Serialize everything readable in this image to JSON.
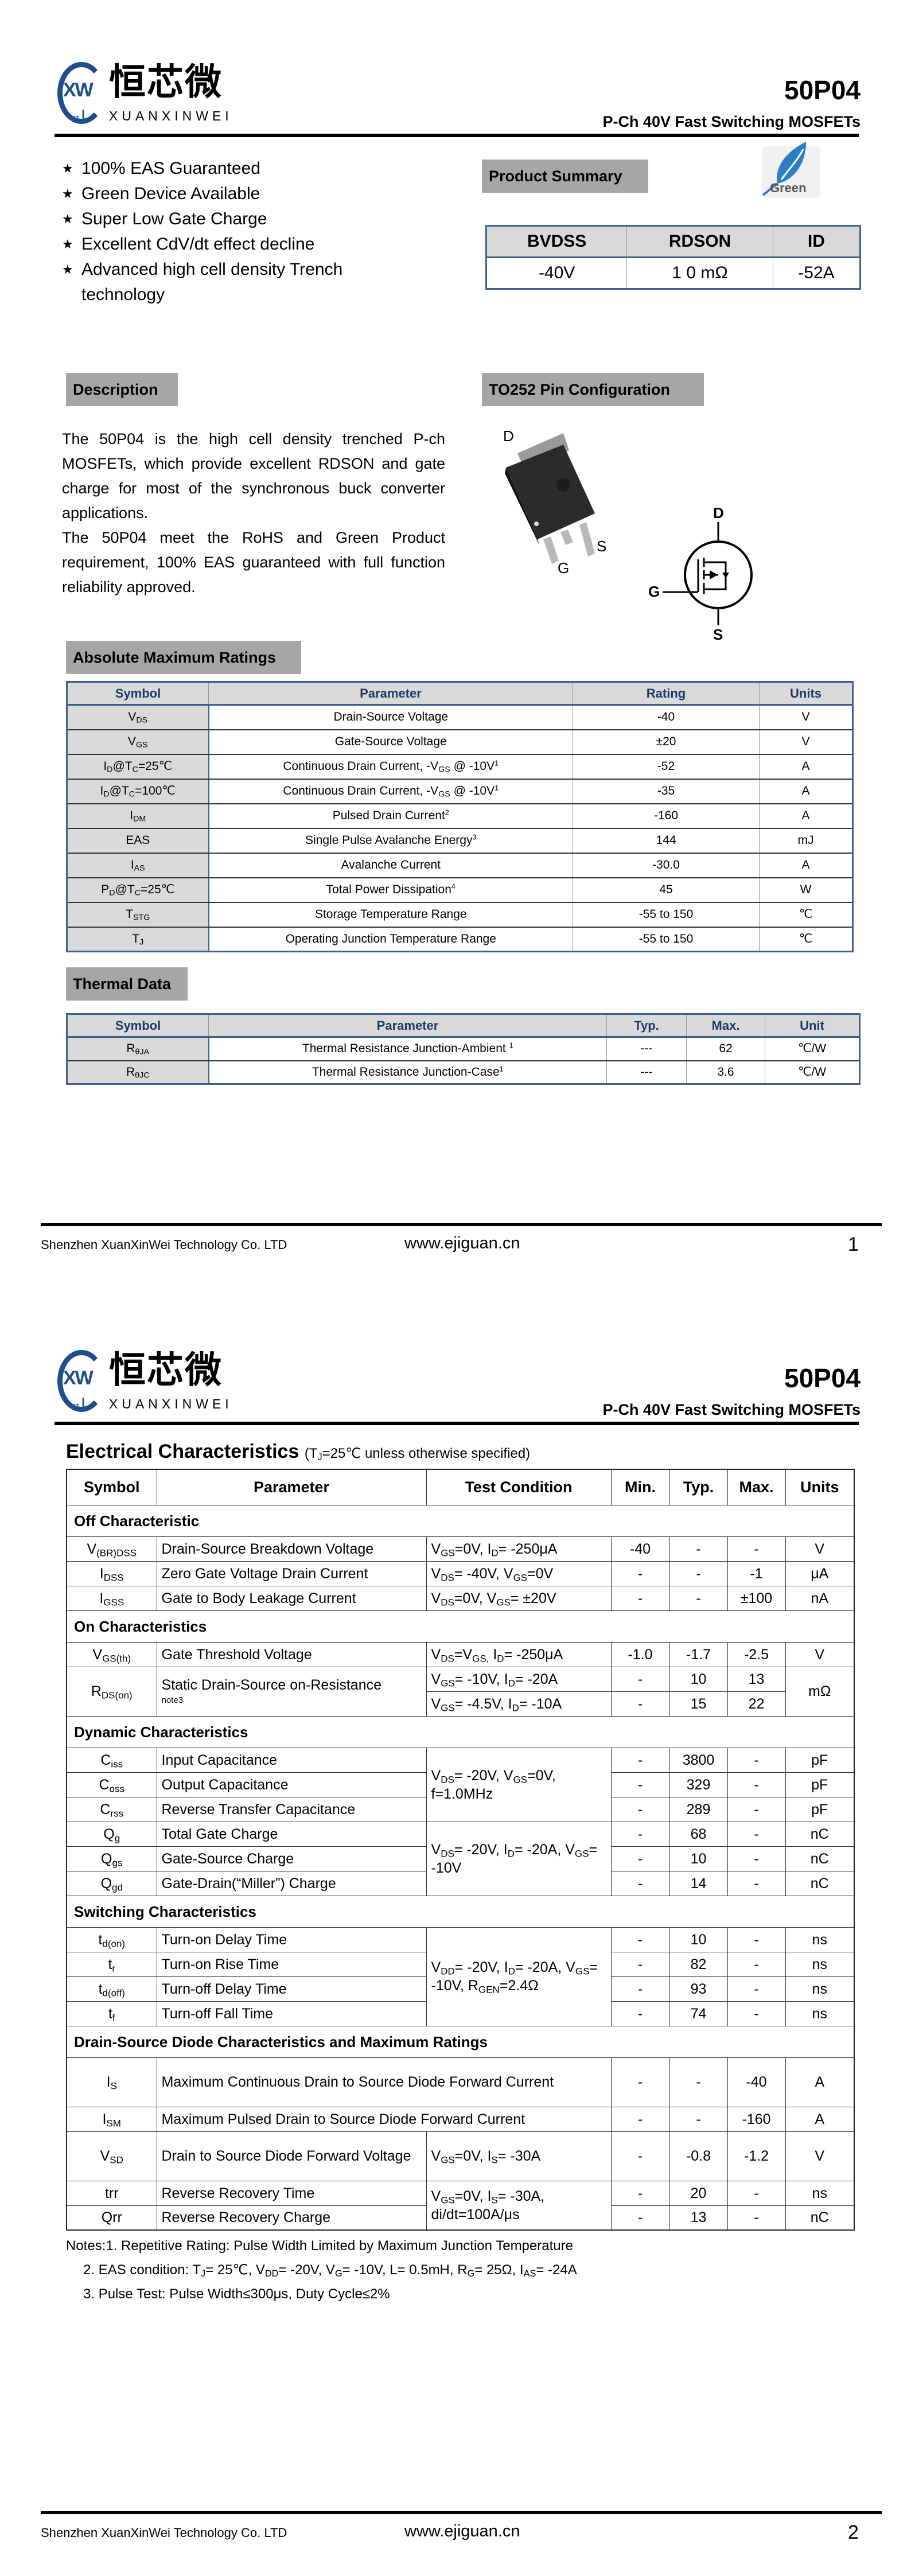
{
  "header": {
    "logo_letters": "XW",
    "logo_diode": "→|",
    "brand_cn": "恒芯微",
    "brand_en": "XUANXINWEI",
    "part": "50P04",
    "subtitle": "P-Ch 40V Fast Switching MOSFETs"
  },
  "features": {
    "bullet": "★",
    "items": [
      "100% EAS Guaranteed",
      "Green Device Available",
      "Super Low Gate Charge",
      "Excellent CdV/dt effect decline",
      "Advanced high cell density Trench"
    ],
    "continuation": "technology"
  },
  "product_summary": {
    "title": "Product Summary",
    "green_badge": "Green",
    "headers": [
      "BVDSS",
      "RDSON",
      "ID"
    ],
    "values": [
      "-40V",
      "1 0 mΩ",
      "-52A"
    ]
  },
  "description": {
    "title": "Description",
    "paragraphs": [
      "The 50P04 is the high cell density trenched P-ch MOSFETs, which provide excellent RDSON and gate charge for most of the synchronous buck converter applications.",
      "The 50P04 meet the RoHS and Green Product requirement, 100% EAS guaranteed with full function reliability approved."
    ]
  },
  "pin_config": {
    "title": "TO252 Pin Configuration",
    "package_labels": {
      "d": "D",
      "g": "G",
      "s": "S"
    },
    "schematic_labels": {
      "d": "D",
      "g": "G",
      "s": "S"
    }
  },
  "abs_max": {
    "title": "Absolute Maximum Ratings",
    "headers": [
      "Symbol",
      "Parameter",
      "Rating",
      "Units"
    ],
    "rows": [
      {
        "symbol": [
          "V",
          {
            "sub": "DS"
          }
        ],
        "param": "Drain-Source Voltage",
        "rating": "-40",
        "unit": "V"
      },
      {
        "symbol": [
          "V",
          {
            "sub": "GS"
          }
        ],
        "param": "Gate-Source Voltage",
        "rating": "±20",
        "unit": "V"
      },
      {
        "symbol": [
          "I",
          {
            "sub": "D"
          },
          "@T",
          {
            "sub": "C"
          },
          "=25℃"
        ],
        "param": [
          "Continuous Drain Current, -V",
          {
            "sub": "GS"
          },
          " @ -10V",
          {
            "sup": "1"
          }
        ],
        "rating": "-52",
        "unit": "A"
      },
      {
        "symbol": [
          "I",
          {
            "sub": "D"
          },
          "@T",
          {
            "sub": "C"
          },
          "=100℃"
        ],
        "param": [
          "Continuous Drain Current, -V",
          {
            "sub": "GS"
          },
          " @ -10V",
          {
            "sup": "1"
          }
        ],
        "rating": "-35",
        "unit": "A"
      },
      {
        "symbol": [
          "I",
          {
            "sub": "DM"
          }
        ],
        "param": [
          "Pulsed Drain Current",
          {
            "sup": "2"
          }
        ],
        "rating": "-160",
        "unit": "A"
      },
      {
        "symbol": "EAS",
        "param": [
          "Single Pulse Avalanche Energy",
          {
            "sup": "3"
          }
        ],
        "rating": "144",
        "unit": "mJ"
      },
      {
        "symbol": [
          "I",
          {
            "sub": "AS"
          }
        ],
        "param": "Avalanche Current",
        "rating": "-30.0",
        "unit": "A"
      },
      {
        "symbol": [
          "P",
          {
            "sub": "D"
          },
          "@T",
          {
            "sub": "C"
          },
          "=25℃"
        ],
        "param": [
          "Total Power Dissipation",
          {
            "sup": "4"
          }
        ],
        "rating": "45",
        "unit": "W"
      },
      {
        "symbol": [
          "T",
          {
            "sub": "STG"
          }
        ],
        "param": "Storage Temperature Range",
        "rating": "-55 to 150",
        "unit": "℃"
      },
      {
        "symbol": [
          "T",
          {
            "sub": "J"
          }
        ],
        "param": "Operating Junction Temperature Range",
        "rating": "-55 to 150",
        "unit": "℃"
      }
    ]
  },
  "thermal": {
    "title": "Thermal Data",
    "headers": [
      "Symbol",
      "Parameter",
      "Typ.",
      "Max.",
      "Unit"
    ],
    "rows": [
      {
        "symbol": [
          "R",
          {
            "sub": "θJA"
          }
        ],
        "param": [
          "Thermal Resistance Junction-Ambient ",
          {
            "sup": "1"
          }
        ],
        "typ": "---",
        "max": "62",
        "unit": "℃/W"
      },
      {
        "symbol": [
          "R",
          {
            "sub": "θJC"
          }
        ],
        "param": [
          "Thermal Resistance Junction-Case",
          {
            "sup": "1"
          }
        ],
        "typ": "---",
        "max": "3.6",
        "unit": "℃/W"
      }
    ]
  },
  "electrical": {
    "title": "Electrical Characteristics",
    "condition": [
      "(T",
      {
        "sub": "J"
      },
      "=25℃ unless otherwise specified)"
    ],
    "headers": [
      "Symbol",
      "Parameter",
      "Test Condition",
      "Min.",
      "Typ.",
      "Max.",
      "Units"
    ],
    "sections": [
      {
        "title": "Off Characteristic",
        "groups": [
          {
            "condition": [
              "V",
              {
                "sub": "GS"
              },
              "=0V, I",
              {
                "sub": "D"
              },
              "= -250μA"
            ],
            "rows": [
              {
                "symbol": [
                  "V",
                  {
                    "sub": "(BR)DSS"
                  }
                ],
                "param": "Drain-Source Breakdown Voltage",
                "min": "-40",
                "typ": "-",
                "max": "-",
                "unit": "V"
              }
            ]
          },
          {
            "condition": [
              "V",
              {
                "sub": "DS"
              },
              "= -40V, V",
              {
                "sub": "GS"
              },
              "=0V"
            ],
            "rows": [
              {
                "symbol": [
                  "I",
                  {
                    "sub": "DSS"
                  }
                ],
                "param": "Zero Gate Voltage Drain Current",
                "min": "-",
                "typ": "-",
                "max": "-1",
                "unit": "μA"
              }
            ]
          },
          {
            "condition": [
              "V",
              {
                "sub": "DS"
              },
              "=0V, V",
              {
                "sub": "GS"
              },
              "= ±20V"
            ],
            "rows": [
              {
                "symbol": [
                  "I",
                  {
                    "sub": "GSS"
                  }
                ],
                "param": "Gate to Body Leakage Current",
                "min": "-",
                "typ": "-",
                "max": "±100",
                "unit": "nA"
              }
            ]
          }
        ]
      },
      {
        "title": "On Characteristics",
        "groups": [
          {
            "condition": [
              "V",
              {
                "sub": "DS"
              },
              "=V",
              {
                "sub": "GS,"
              },
              " I",
              {
                "sub": "D"
              },
              "= -250μA"
            ],
            "rows": [
              {
                "symbol": [
                  "V",
                  {
                    "sub": "GS(th)"
                  }
                ],
                "param": "Gate Threshold Voltage",
                "min": "-1.0",
                "typ": "-1.7",
                "max": "-2.5",
                "unit": "V"
              }
            ]
          },
          {
            "multi": true,
            "symbol": [
              "R",
              {
                "sub": "DS(on)"
              }
            ],
            "param": "Static Drain-Source on-Resistance",
            "note": "note3",
            "unit": "mΩ",
            "conditions": [
              {
                "condition": [
                  "V",
                  {
                    "sub": "GS"
                  },
                  "= -10V, I",
                  {
                    "sub": "D"
                  },
                  "= -20A"
                ],
                "min": "-",
                "typ": "10",
                "max": "13"
              },
              {
                "condition": [
                  "V",
                  {
                    "sub": "GS"
                  },
                  "= -4.5V, I",
                  {
                    "sub": "D"
                  },
                  "= -10A"
                ],
                "min": "-",
                "typ": "15",
                "max": "22"
              }
            ]
          }
        ]
      },
      {
        "title": "Dynamic Characteristics",
        "groups": [
          {
            "condition": [
              "V",
              {
                "sub": "DS"
              },
              "= -20V, V",
              {
                "sub": "GS"
              },
              "=0V, f=1.0MHz"
            ],
            "rows": [
              {
                "symbol": [
                  "C",
                  {
                    "sub": "iss"
                  }
                ],
                "param": "Input Capacitance",
                "min": "-",
                "typ": "3800",
                "max": "-",
                "unit": "pF"
              },
              {
                "symbol": [
                  "C",
                  {
                    "sub": "oss"
                  }
                ],
                "param": "Output Capacitance",
                "min": "-",
                "typ": "329",
                "max": "-",
                "unit": "pF"
              },
              {
                "symbol": [
                  "C",
                  {
                    "sub": "rss"
                  }
                ],
                "param": "Reverse Transfer Capacitance",
                "min": "-",
                "typ": "289",
                "max": "-",
                "unit": "pF"
              }
            ]
          },
          {
            "condition": [
              "V",
              {
                "sub": "DS"
              },
              "= -20V, I",
              {
                "sub": "D"
              },
              "= -20A, V",
              {
                "sub": "GS"
              },
              "= -10V"
            ],
            "rows": [
              {
                "symbol": [
                  "Q",
                  {
                    "sub": "g"
                  }
                ],
                "param": "Total Gate Charge",
                "min": "-",
                "typ": "68",
                "max": "-",
                "unit": "nC"
              },
              {
                "symbol": [
                  "Q",
                  {
                    "sub": "gs"
                  }
                ],
                "param": "Gate-Source Charge",
                "min": "-",
                "typ": "10",
                "max": "-",
                "unit": "nC"
              },
              {
                "symbol": [
                  "Q",
                  {
                    "sub": "gd"
                  }
                ],
                "param": "Gate-Drain(“Miller”) Charge",
                "min": "-",
                "typ": "14",
                "max": "-",
                "unit": "nC"
              }
            ]
          }
        ]
      },
      {
        "title": "Switching Characteristics",
        "groups": [
          {
            "condition": [
              "V",
              {
                "sub": "DD"
              },
              "= -20V, I",
              {
                "sub": "D"
              },
              "= -20A, V",
              {
                "sub": "GS"
              },
              "= -10V, R",
              {
                "sub": "GEN"
              },
              "=2.4Ω"
            ],
            "rows": [
              {
                "symbol": [
                  "t",
                  {
                    "sub": "d(on)"
                  }
                ],
                "param": "Turn-on Delay Time",
                "min": "-",
                "typ": "10",
                "max": "-",
                "unit": "ns"
              },
              {
                "symbol": [
                  "t",
                  {
                    "sub": "r"
                  }
                ],
                "param": "Turn-on Rise Time",
                "min": "-",
                "typ": "82",
                "max": "-",
                "unit": "ns"
              },
              {
                "symbol": [
                  "t",
                  {
                    "sub": "d(off)"
                  }
                ],
                "param": "Turn-off Delay Time",
                "min": "-",
                "typ": "93",
                "max": "-",
                "unit": "ns"
              },
              {
                "symbol": [
                  "t",
                  {
                    "sub": "f"
                  }
                ],
                "param": "Turn-off Fall Time",
                "min": "-",
                "typ": "74",
                "max": "-",
                "unit": "ns"
              }
            ]
          }
        ]
      },
      {
        "title": "Drain-Source Diode Characteristics and Maximum Ratings",
        "groups": [
          {
            "condition": null,
            "rows": [
              {
                "symbol": [
                  "I",
                  {
                    "sub": "S"
                  }
                ],
                "param": "Maximum Continuous Drain to Source Diode Forward Current",
                "min": "-",
                "typ": "-",
                "max": "-40",
                "unit": "A",
                "tall": true
              }
            ]
          },
          {
            "condition": null,
            "rows": [
              {
                "symbol": [
                  "I",
                  {
                    "sub": "SM"
                  }
                ],
                "param": "Maximum Pulsed Drain to Source Diode Forward Current",
                "min": "-",
                "typ": "-",
                "max": "-160",
                "unit": "A"
              }
            ]
          },
          {
            "condition": [
              "V",
              {
                "sub": "GS"
              },
              "=0V, I",
              {
                "sub": "S"
              },
              "= -30A"
            ],
            "rows": [
              {
                "symbol": [
                  "V",
                  {
                    "sub": "SD"
                  }
                ],
                "param": "Drain to Source Diode Forward Voltage",
                "min": "-",
                "typ": "-0.8",
                "max": "-1.2",
                "unit": "V",
                "tall": true
              }
            ]
          },
          {
            "condition": [
              "V",
              {
                "sub": "GS"
              },
              "=0V, I",
              {
                "sub": "S"
              },
              "= -30A, di/dt=100A/μs"
            ],
            "rows": [
              {
                "symbol": "trr",
                "param": "Reverse Recovery Time",
                "min": "-",
                "typ": "20",
                "max": "-",
                "unit": "ns"
              },
              {
                "symbol": "Qrr",
                "param": "Reverse Recovery Charge",
                "min": "-",
                "typ": "13",
                "max": "-",
                "unit": "nC"
              }
            ]
          }
        ]
      }
    ],
    "notes": [
      "Notes:1. Repetitive Rating: Pulse Width Limited by Maximum Junction Temperature",
      [
        "2. EAS condition: T",
        {
          "sub": "J"
        },
        "= 25℃, V",
        {
          "sub": "DD"
        },
        "= -20V, V",
        {
          "sub": "G"
        },
        "= -10V, L= 0.5mH, R",
        {
          "sub": "G"
        },
        "= 25Ω, I",
        {
          "sub": "AS"
        },
        "= -24A"
      ],
      "3. Pulse Test: Pulse Width≤300μs, Duty Cycle≤2%"
    ]
  },
  "footer": {
    "company": "Shenzhen XuanXinWei Technology Co. LTD",
    "website": "www.ejiguan.cn",
    "pages": [
      "1",
      "2"
    ]
  },
  "colors": {
    "table_border": "#3f5f8f",
    "header_text": "#1f3864",
    "section_box": "#a6a6a6",
    "cell_gray": "#d9d9d9",
    "logo_blue": "#1f4e8c",
    "leaf_blue": "#2e7dc4"
  }
}
